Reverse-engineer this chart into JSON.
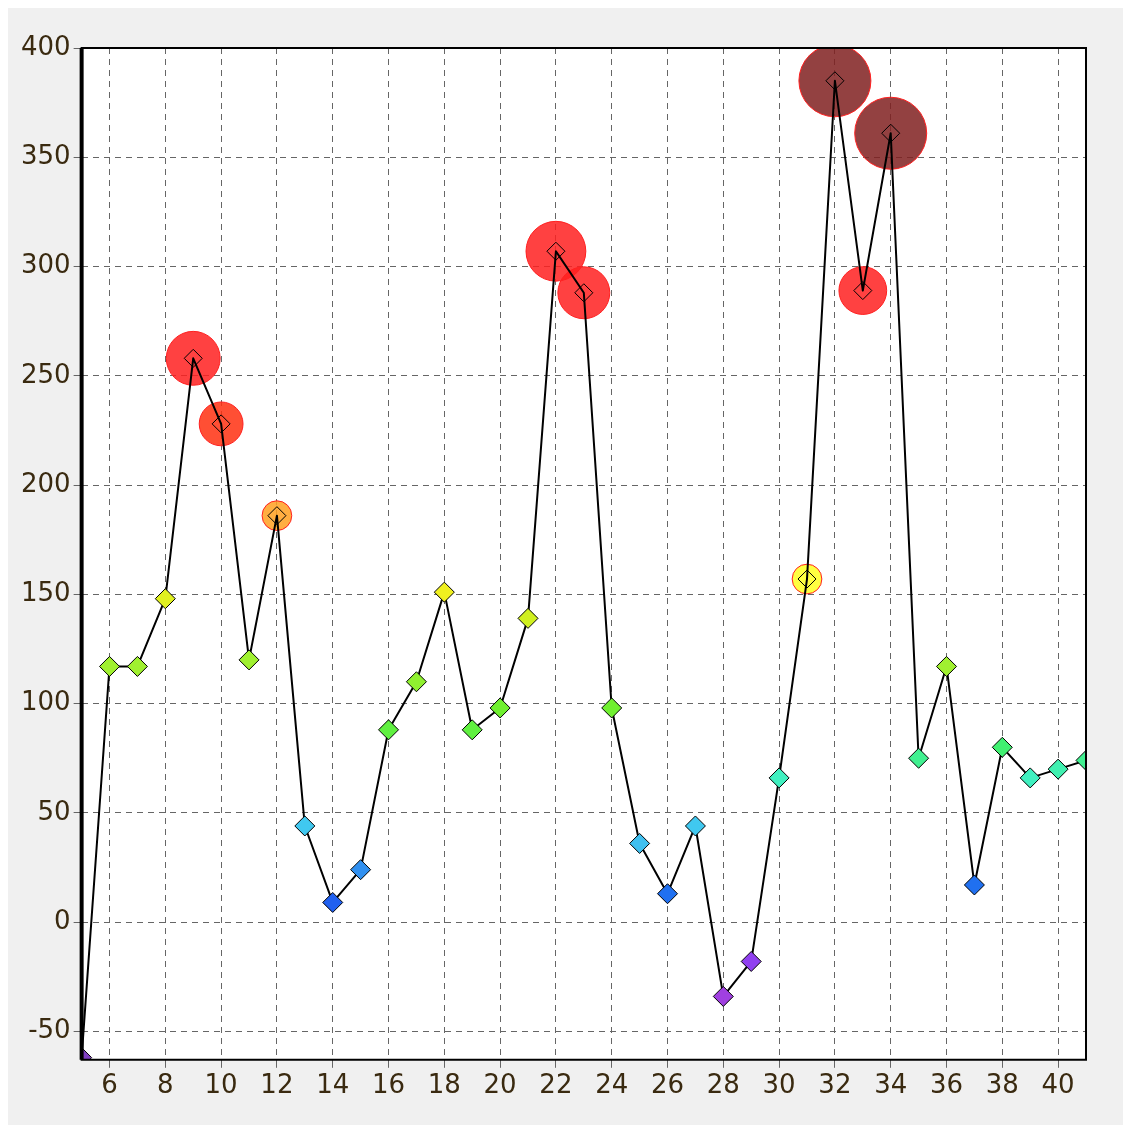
{
  "chart_data": {
    "type": "line",
    "xlim": [
      5,
      41
    ],
    "ylim": [
      -63,
      400
    ],
    "xticks": [
      6,
      8,
      10,
      12,
      14,
      16,
      18,
      20,
      22,
      24,
      26,
      28,
      30,
      32,
      34,
      36,
      38,
      40
    ],
    "yticks": [
      -50,
      0,
      50,
      100,
      150,
      200,
      250,
      300,
      350,
      400
    ],
    "grid": true,
    "legend": false,
    "marker": "diamond",
    "line_style": "solid",
    "series": [
      {
        "color": "#000000",
        "x": [
          5,
          6,
          7,
          8,
          9,
          10,
          11,
          12,
          13,
          14,
          15,
          16,
          17,
          18,
          19,
          20,
          21,
          22,
          23,
          24,
          25,
          26,
          27,
          28,
          29,
          30,
          31,
          32,
          33,
          34,
          35,
          36,
          37,
          38,
          39,
          40,
          41
        ],
        "values": [
          -62,
          117,
          117,
          148,
          258,
          228,
          120,
          186,
          44,
          9,
          24,
          88,
          110,
          151,
          88,
          98,
          139,
          307,
          288,
          98,
          36,
          13,
          44,
          -34,
          -18,
          66,
          157,
          385,
          289,
          361,
          75,
          117,
          17,
          80,
          66,
          70,
          74
        ],
        "colors": [
          "#8040c0",
          "#a0f030",
          "#a0f030",
          "#e0f020",
          "#ff2020",
          "#ff3010",
          "#a0f030",
          "#ffa020",
          "#40c8f0",
          "#2060f0",
          "#3090f0",
          "#60f040",
          "#90f030",
          "#f0f020",
          "#60f040",
          "#70f030",
          "#d0f020",
          "#ff2020",
          "#ff2020",
          "#70f030",
          "#40c0f0",
          "#2070f0",
          "#40c8f0",
          "#a040e0",
          "#9040f0",
          "#40f0c0",
          "#ffff20",
          "#802020",
          "#ff2020",
          "#802020",
          "#40f090",
          "#a0f030",
          "#2070f0",
          "#40f070",
          "#40f0c0",
          "#40f0b0",
          "#40f090"
        ]
      },
      {
        "type": "bubble",
        "color": "#ff2020",
        "marker": "circle",
        "x": [
          9,
          10,
          12,
          22,
          23,
          31,
          32,
          33,
          34
        ],
        "values": [
          258,
          228,
          186,
          307,
          288,
          157,
          385,
          289,
          361
        ],
        "sizes": [
          0.56,
          0.37,
          0.17,
          0.69,
          0.52,
          0.17,
          1,
          0.44,
          1
        ],
        "colors": [
          "#ff2020",
          "#ff3010",
          "#ffa020",
          "#ff2020",
          "#ff2020",
          "#ffff20",
          "#802020",
          "#ff2020",
          "#802020"
        ]
      }
    ]
  }
}
